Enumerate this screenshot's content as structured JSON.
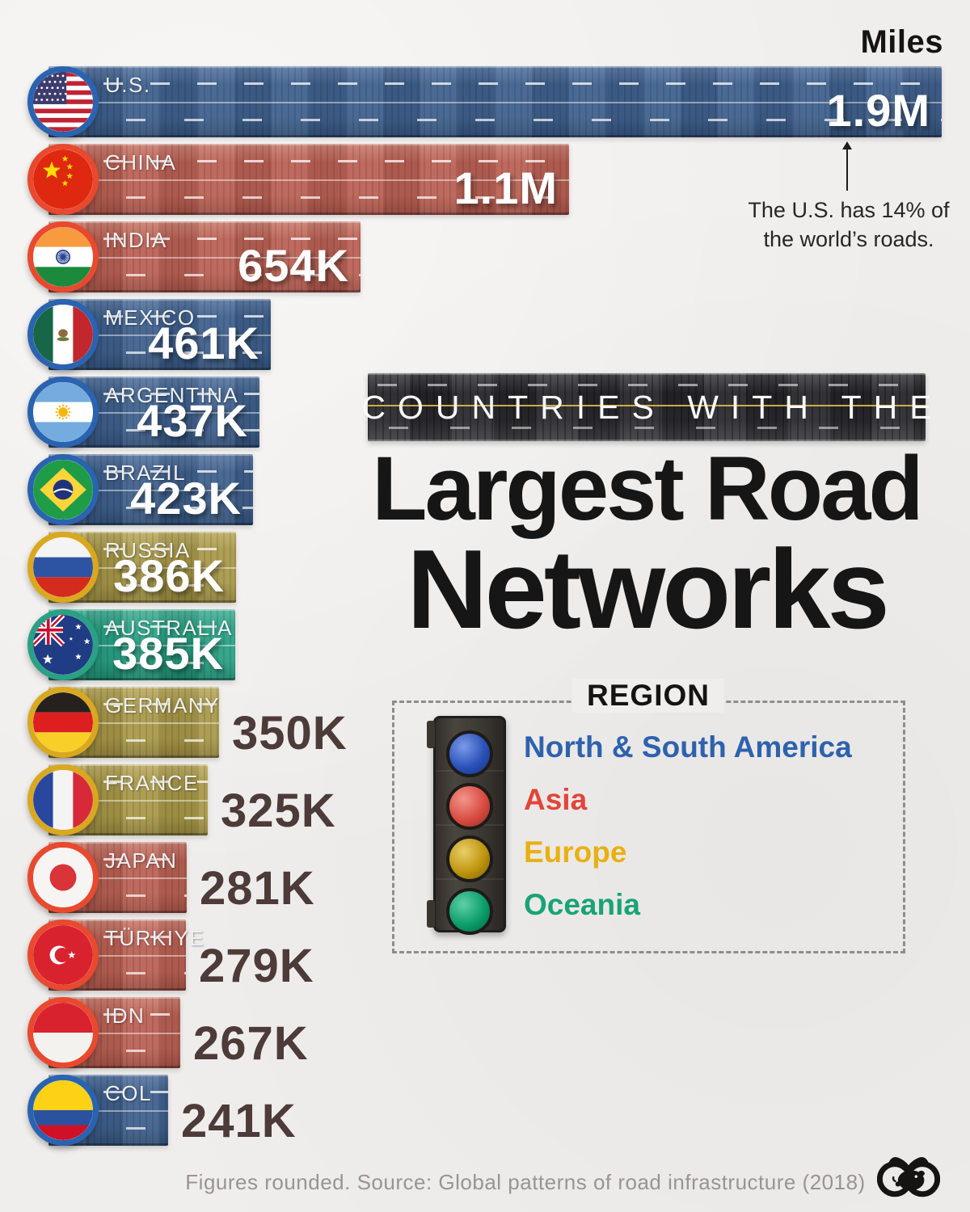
{
  "title": {
    "kicker": "COUNTRIES WITH THE",
    "line1": "Largest Road",
    "line2": "Networks"
  },
  "annotation": {
    "line1": "The U.S. has 14% of",
    "line2": "the world’s roads."
  },
  "legend": {
    "heading": "REGION",
    "items": [
      {
        "label": "North & South America",
        "region_key": "americas",
        "text_color": "#2e62ae",
        "lens_color": "#2a52b8",
        "lens_dark": "#16307d",
        "lens_light": "#7d9ae8"
      },
      {
        "label": "Asia",
        "region_key": "asia",
        "text_color": "#e2453a",
        "lens_color": "#da4c41",
        "lens_dark": "#8e2a22",
        "lens_light": "#f0968d"
      },
      {
        "label": "Europe",
        "region_key": "europe",
        "text_color": "#e8b111",
        "lens_color": "#bf950e",
        "lens_dark": "#785d06",
        "lens_light": "#e8cf6a"
      },
      {
        "label": "Oceania",
        "region_key": "oceania",
        "text_color": "#19a377",
        "lens_color": "#0c9e6a",
        "lens_dark": "#056344",
        "lens_light": "#5fd0a8"
      }
    ]
  },
  "footer": {
    "note": "Figures rounded. Source: Global patterns of road infrastructure (2018)"
  },
  "chart_data": {
    "type": "bar",
    "orientation": "horizontal",
    "unit_label": "Miles",
    "title": "Countries with the Largest Road Networks",
    "legend_position": "center-right",
    "categories": [
      "U.S.",
      "CHINA",
      "INDIA",
      "MEXICO",
      "ARGENTINA",
      "BRAZIL",
      "RUSSIA",
      "AUSTRALIA",
      "GERMANY",
      "FRANCE",
      "JAPAN",
      "TÜRKIYE",
      "IDN",
      "COL"
    ],
    "values_miles_thousands": [
      1900,
      1100,
      654,
      461,
      437,
      423,
      386,
      385,
      350,
      325,
      281,
      279,
      267,
      241
    ],
    "bars": [
      {
        "country": "U.S.",
        "code": "us",
        "region": "North & South America",
        "region_key": "americas",
        "value_k": 1900,
        "value_label": "1.9M",
        "value_placement": "inside"
      },
      {
        "country": "CHINA",
        "code": "cn",
        "region": "Asia",
        "region_key": "asia",
        "value_k": 1100,
        "value_label": "1.1M",
        "value_placement": "inside"
      },
      {
        "country": "INDIA",
        "code": "in",
        "region": "Asia",
        "region_key": "asia",
        "value_k": 654,
        "value_label": "654K",
        "value_placement": "inside"
      },
      {
        "country": "MEXICO",
        "code": "mx",
        "region": "North & South America",
        "region_key": "americas",
        "value_k": 461,
        "value_label": "461K",
        "value_placement": "inside"
      },
      {
        "country": "ARGENTINA",
        "code": "ar",
        "region": "North & South America",
        "region_key": "americas",
        "value_k": 437,
        "value_label": "437K",
        "value_placement": "inside"
      },
      {
        "country": "BRAZIL",
        "code": "br",
        "region": "North & South America",
        "region_key": "americas",
        "value_k": 423,
        "value_label": "423K",
        "value_placement": "inside"
      },
      {
        "country": "RUSSIA",
        "code": "ru",
        "region": "Europe",
        "region_key": "europe",
        "value_k": 386,
        "value_label": "386K",
        "value_placement": "inside"
      },
      {
        "country": "AUSTRALIA",
        "code": "au",
        "region": "Oceania",
        "region_key": "oceania",
        "value_k": 385,
        "value_label": "385K",
        "value_placement": "inside"
      },
      {
        "country": "GERMANY",
        "code": "de",
        "region": "Europe",
        "region_key": "europe",
        "value_k": 350,
        "value_label": "350K",
        "value_placement": "outside"
      },
      {
        "country": "FRANCE",
        "code": "fr",
        "region": "Europe",
        "region_key": "europe",
        "value_k": 325,
        "value_label": "325K",
        "value_placement": "outside"
      },
      {
        "country": "JAPAN",
        "code": "jp",
        "region": "Asia",
        "region_key": "asia",
        "value_k": 281,
        "value_label": "281K",
        "value_placement": "outside"
      },
      {
        "country": "TÜRKIYE",
        "code": "tr",
        "region": "Asia",
        "region_key": "asia",
        "value_k": 279,
        "value_label": "279K",
        "value_placement": "outside"
      },
      {
        "country": "IDN",
        "code": "id",
        "region": "Asia",
        "region_key": "asia",
        "value_k": 267,
        "value_label": "267K",
        "value_placement": "outside"
      },
      {
        "country": "COL",
        "code": "co",
        "region": "North & South America",
        "region_key": "americas",
        "value_k": 241,
        "value_label": "241K",
        "value_placement": "outside"
      }
    ],
    "ring_colors": {
      "americas": "#2a63b0",
      "asia": "#e8492f",
      "europe": "#d9a81f",
      "oceania": "#2aa084"
    }
  }
}
